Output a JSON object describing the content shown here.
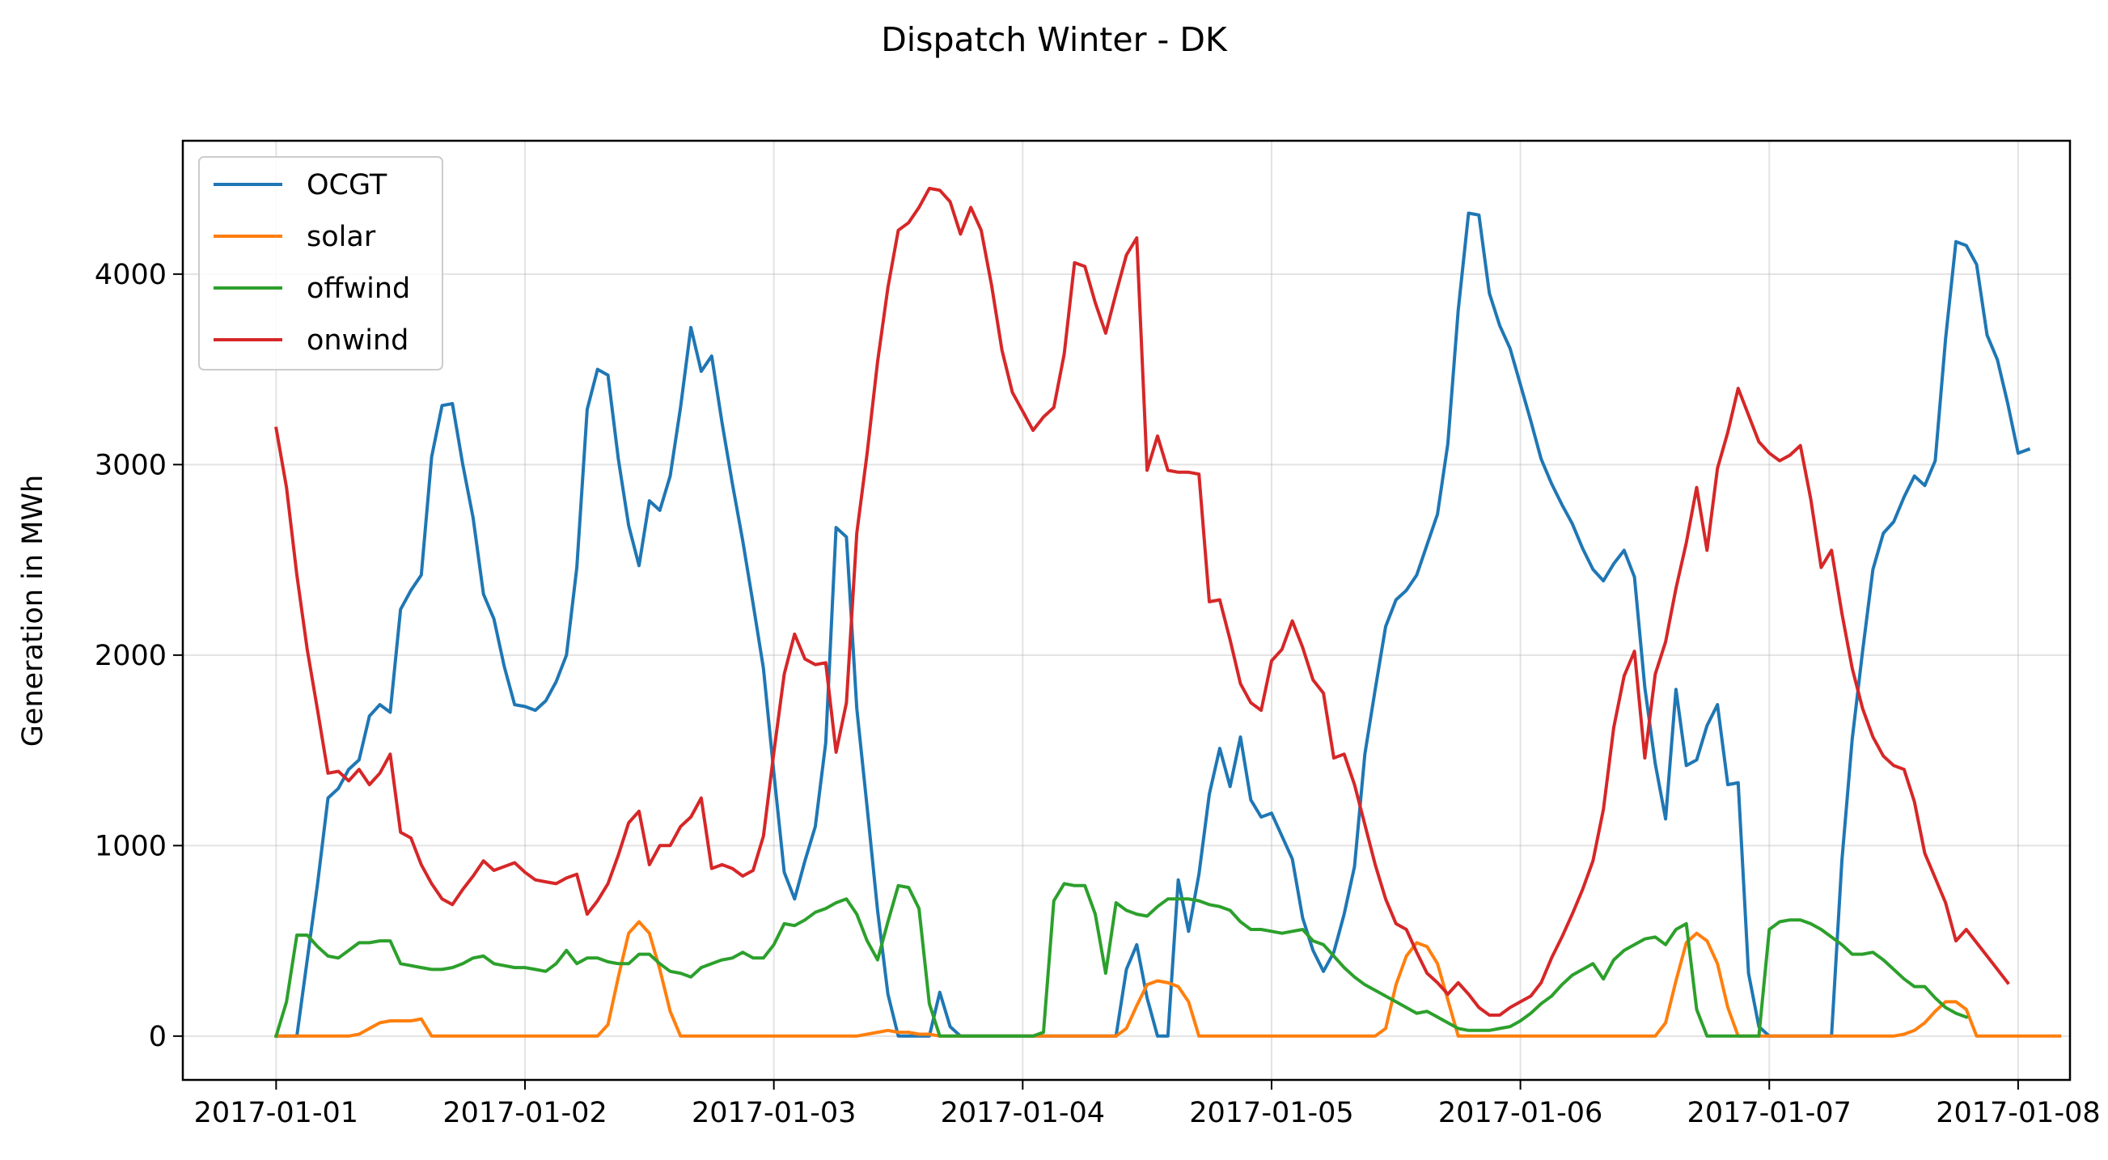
{
  "chart_data": {
    "type": "line",
    "title": "Dispatch Winter - DK",
    "xlabel": "",
    "ylabel": "Generation in MWh",
    "x_start": "2017-01-01T00:00",
    "x_step_hours": 1,
    "xlim": [
      "2016-12-31T15:00",
      "2017-01-08T05:00"
    ],
    "ylim": [
      -230,
      4700
    ],
    "x_ticks": [
      "2017-01-01",
      "2017-01-02",
      "2017-01-03",
      "2017-01-04",
      "2017-01-05",
      "2017-01-06",
      "2017-01-07",
      "2017-01-08"
    ],
    "y_ticks": [
      0,
      1000,
      2000,
      3000,
      4000
    ],
    "grid": true,
    "legend_position": "top-left",
    "series": [
      {
        "name": "OCGT",
        "color": "#1f77b4",
        "values": [
          0,
          0,
          0,
          400,
          800,
          1250,
          1300,
          1400,
          1450,
          1680,
          1740,
          1700,
          2240,
          2340,
          2420,
          3040,
          3310,
          3320,
          3000,
          2720,
          2320,
          2190,
          1940,
          1740,
          1730,
          1710,
          1760,
          1860,
          2000,
          2460,
          3290,
          3500,
          3470,
          3030,
          2680,
          2470,
          2810,
          2760,
          2940,
          3300,
          3720,
          3490,
          3570,
          3220,
          2900,
          2600,
          2270,
          1930,
          1380,
          860,
          720,
          920,
          1100,
          1540,
          2670,
          2620,
          1720,
          1200,
          660,
          220,
          0,
          0,
          0,
          0,
          230,
          50,
          0,
          0,
          0,
          0,
          0,
          0,
          0,
          0,
          0,
          0,
          0,
          0,
          0,
          0,
          0,
          0,
          350,
          480,
          200,
          0,
          0,
          820,
          550,
          850,
          1270,
          1510,
          1310,
          1570,
          1240,
          1150,
          1170,
          1050,
          930,
          620,
          450,
          340,
          440,
          640,
          890,
          1480,
          1820,
          2150,
          2290,
          2340,
          2420,
          2580,
          2740,
          3110,
          3810,
          4320,
          4310,
          3900,
          3730,
          3610,
          3420,
          3230,
          3030,
          2900,
          2790,
          2690,
          2560,
          2450,
          2390,
          2480,
          2550,
          2410,
          1830,
          1430,
          1140,
          1820,
          1420,
          1450,
          1630,
          1740,
          1320,
          1330,
          330,
          50,
          0,
          0,
          0,
          0,
          0,
          0,
          0,
          920,
          1560,
          2020,
          2450,
          2640,
          2700,
          2830,
          2940,
          2890,
          3020,
          3660,
          4170,
          4150,
          4050,
          3680,
          3550,
          3320,
          3060,
          3080
        ]
      },
      {
        "name": "solar",
        "color": "#ff7f0e",
        "values": [
          0,
          0,
          0,
          0,
          0,
          0,
          0,
          0,
          10,
          40,
          70,
          80,
          80,
          80,
          90,
          0,
          0,
          0,
          0,
          0,
          0,
          0,
          0,
          0,
          0,
          0,
          0,
          0,
          0,
          0,
          0,
          0,
          60,
          310,
          540,
          600,
          540,
          350,
          130,
          0,
          0,
          0,
          0,
          0,
          0,
          0,
          0,
          0,
          0,
          0,
          0,
          0,
          0,
          0,
          0,
          0,
          0,
          10,
          20,
          30,
          20,
          20,
          10,
          10,
          0,
          0,
          0,
          0,
          0,
          0,
          0,
          0,
          0,
          0,
          0,
          0,
          0,
          0,
          0,
          0,
          0,
          0,
          40,
          160,
          270,
          290,
          280,
          260,
          180,
          0,
          0,
          0,
          0,
          0,
          0,
          0,
          0,
          0,
          0,
          0,
          0,
          0,
          0,
          0,
          0,
          0,
          0,
          40,
          270,
          420,
          490,
          470,
          380,
          190,
          0,
          0,
          0,
          0,
          0,
          0,
          0,
          0,
          0,
          0,
          0,
          0,
          0,
          0,
          0,
          0,
          0,
          0,
          0,
          0,
          70,
          290,
          490,
          540,
          500,
          380,
          150,
          0,
          0,
          0,
          0,
          0,
          0,
          0,
          0,
          0,
          0,
          0,
          0,
          0,
          0,
          0,
          0,
          10,
          30,
          70,
          130,
          180,
          180,
          140,
          0,
          0,
          0,
          0,
          0,
          0,
          0,
          0,
          0
        ]
      },
      {
        "name": "offwind",
        "color": "#2ca02c",
        "values": [
          0,
          180,
          530,
          530,
          470,
          420,
          410,
          450,
          490,
          490,
          500,
          500,
          380,
          370,
          360,
          350,
          350,
          360,
          380,
          410,
          420,
          380,
          370,
          360,
          360,
          350,
          340,
          380,
          450,
          380,
          410,
          410,
          390,
          380,
          380,
          430,
          430,
          380,
          340,
          330,
          310,
          360,
          380,
          400,
          410,
          440,
          410,
          410,
          480,
          590,
          580,
          610,
          650,
          670,
          700,
          720,
          640,
          500,
          400,
          600,
          790,
          780,
          670,
          170,
          0,
          0,
          0,
          0,
          0,
          0,
          0,
          0,
          0,
          0,
          20,
          710,
          800,
          790,
          790,
          640,
          330,
          700,
          660,
          640,
          630,
          680,
          720,
          720,
          720,
          710,
          690,
          680,
          660,
          600,
          560,
          560,
          550,
          540,
          550,
          560,
          500,
          480,
          420,
          360,
          310,
          270,
          240,
          210,
          180,
          150,
          120,
          130,
          100,
          70,
          40,
          30,
          30,
          30,
          40,
          50,
          80,
          120,
          170,
          210,
          270,
          320,
          350,
          380,
          300,
          400,
          450,
          480,
          510,
          520,
          480,
          560,
          590,
          140,
          0,
          0,
          0,
          0,
          0,
          0,
          560,
          600,
          610,
          610,
          590,
          560,
          520,
          480,
          430,
          430,
          440,
          400,
          350,
          300,
          260,
          260,
          200,
          150,
          120,
          100
        ]
      },
      {
        "name": "onwind",
        "color": "#d62728",
        "values": [
          3190,
          2880,
          2420,
          2030,
          1710,
          1380,
          1390,
          1340,
          1400,
          1320,
          1380,
          1480,
          1070,
          1040,
          900,
          800,
          720,
          690,
          770,
          840,
          920,
          870,
          890,
          910,
          860,
          820,
          810,
          800,
          830,
          850,
          640,
          710,
          800,
          950,
          1120,
          1180,
          900,
          1000,
          1000,
          1100,
          1150,
          1250,
          880,
          900,
          880,
          840,
          870,
          1050,
          1490,
          1900,
          2110,
          1980,
          1950,
          1960,
          1490,
          1750,
          2640,
          3060,
          3540,
          3930,
          4230,
          4270,
          4350,
          4450,
          4440,
          4380,
          4210,
          4350,
          4230,
          3940,
          3600,
          3380,
          3280,
          3180,
          3250,
          3300,
          3580,
          4060,
          4040,
          3850,
          3690,
          3900,
          4100,
          4190,
          2970,
          3150,
          2970,
          2960,
          2960,
          2950,
          2280,
          2290,
          2080,
          1850,
          1750,
          1710,
          1970,
          2030,
          2180,
          2040,
          1870,
          1800,
          1460,
          1480,
          1320,
          1110,
          900,
          720,
          590,
          560,
          440,
          330,
          280,
          220,
          280,
          220,
          150,
          110,
          110,
          150,
          180,
          210,
          280,
          410,
          520,
          640,
          770,
          920,
          1190,
          1620,
          1890,
          2020,
          1460,
          1900,
          2070,
          2350,
          2590,
          2880,
          2550,
          2980,
          3170,
          3400,
          3260,
          3120,
          3060,
          3020,
          3050,
          3100,
          2820,
          2460,
          2550,
          2220,
          1930,
          1720,
          1570,
          1470,
          1420,
          1400,
          1230,
          960,
          830,
          700,
          500,
          560,
          490,
          420,
          350,
          280
        ]
      }
    ]
  }
}
